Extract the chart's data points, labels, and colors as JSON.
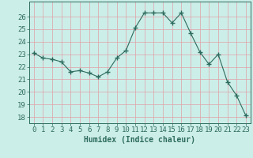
{
  "x": [
    0,
    1,
    2,
    3,
    4,
    5,
    6,
    7,
    8,
    9,
    10,
    11,
    12,
    13,
    14,
    15,
    16,
    17,
    18,
    19,
    20,
    21,
    22,
    23
  ],
  "y": [
    23.1,
    22.7,
    22.6,
    22.4,
    21.6,
    21.7,
    21.5,
    21.2,
    21.6,
    22.7,
    23.3,
    25.1,
    26.3,
    26.3,
    26.3,
    25.5,
    26.3,
    24.7,
    23.2,
    22.2,
    23.0,
    20.8,
    19.7,
    18.1
  ],
  "line_color": "#2d6b5e",
  "marker": "+",
  "marker_size": 4,
  "bg_color": "#cceee8",
  "grid_color": "#e0a0a8",
  "axis_color": "#2d6b5e",
  "xlabel": "Humidex (Indice chaleur)",
  "ylim": [
    17.5,
    27.2
  ],
  "xlim": [
    -0.5,
    23.5
  ],
  "yticks": [
    18,
    19,
    20,
    21,
    22,
    23,
    24,
    25,
    26
  ],
  "xticks": [
    0,
    1,
    2,
    3,
    4,
    5,
    6,
    7,
    8,
    9,
    10,
    11,
    12,
    13,
    14,
    15,
    16,
    17,
    18,
    19,
    20,
    21,
    22,
    23
  ],
  "label_fontsize": 7,
  "tick_fontsize": 6.5
}
